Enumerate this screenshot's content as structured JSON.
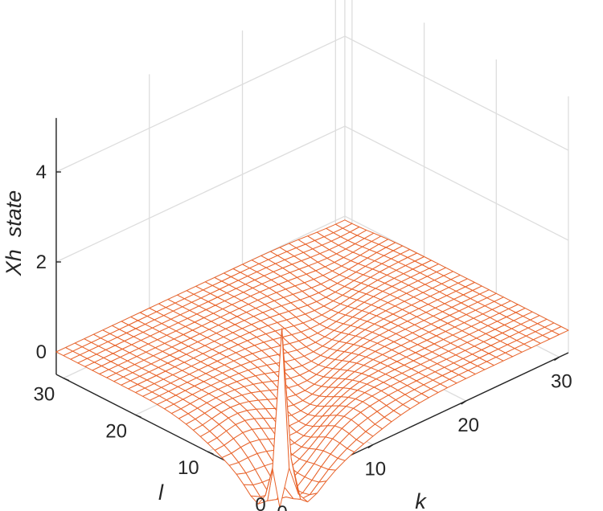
{
  "chart_data": {
    "type": "surface",
    "title": "",
    "xlabel": "k",
    "ylabel": "l",
    "zlabel": "Xh  state",
    "x_ticks": [
      "0",
      "10",
      "20",
      "30"
    ],
    "y_ticks": [
      "0",
      "10",
      "20",
      "30"
    ],
    "z_ticks": [
      "0",
      "2",
      "4"
    ],
    "xlim": [
      0,
      31
    ],
    "ylim": [
      0,
      31
    ],
    "zlim": [
      -0.5,
      5.2
    ],
    "grid": true,
    "surface_color": "#e8642c",
    "grid_n": 32,
    "surface": {
      "baseline": 0,
      "peak": {
        "k": 1,
        "l": 1,
        "height": 3.3
      },
      "diagonal_trough": {
        "depth": -1.4,
        "width": 1.2
      },
      "edge_ripple": {
        "along": "l=0",
        "amplitude": -0.9
      }
    },
    "samples": [
      {
        "k": 1,
        "l": 1,
        "z": 3.3
      },
      {
        "k": 5,
        "l": 5,
        "z": -1.1
      },
      {
        "k": 15,
        "l": 15,
        "z": -0.3
      },
      {
        "k": 30,
        "l": 30,
        "z": 0.0
      }
    ]
  }
}
